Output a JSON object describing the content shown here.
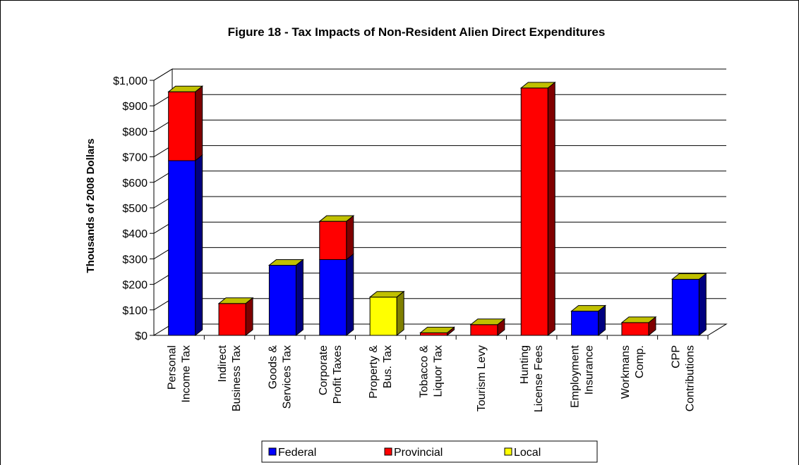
{
  "chart_data": {
    "type": "bar",
    "stacked": true,
    "three_d": true,
    "title": "Figure 18 - Tax Impacts of Non-Resident Alien Direct Expenditures",
    "xlabel": "",
    "ylabel": "Thousands of 2008 Dollars",
    "ylim": [
      0,
      1000
    ],
    "y_ticks": [
      "$0",
      "$100",
      "$200",
      "$300",
      "$400",
      "$500",
      "$600",
      "$700",
      "$800",
      "$900",
      "$1,000"
    ],
    "grid": true,
    "legend_position": "bottom",
    "categories": [
      [
        "Personal",
        "Income Tax"
      ],
      [
        "Indirect",
        "Business Tax"
      ],
      [
        "Goods &",
        "Services Tax"
      ],
      [
        "Corporate",
        "Profit Taxes"
      ],
      [
        "Property &",
        "Bus. Tax"
      ],
      [
        "Tobacco &",
        "Liquor Tax"
      ],
      [
        "Tourism Levy"
      ],
      [
        "Hunting",
        "License Fees"
      ],
      [
        "Employment",
        "Insurance"
      ],
      [
        "Workmans",
        "Comp."
      ],
      [
        "CPP",
        "Contributions"
      ]
    ],
    "series": [
      {
        "name": "Federal",
        "color": "#0000ff",
        "side_color": "#000080",
        "values": [
          685,
          0,
          275,
          297,
          0,
          0,
          0,
          0,
          95,
          0,
          220
        ]
      },
      {
        "name": "Provincial",
        "color": "#ff0000",
        "side_color": "#800000",
        "values": [
          270,
          125,
          0,
          150,
          0,
          10,
          42,
          970,
          0,
          50,
          0
        ]
      },
      {
        "name": "Local",
        "color": "#ffff00",
        "side_color": "#808000",
        "values": [
          0,
          0,
          0,
          0,
          150,
          0,
          0,
          0,
          0,
          0,
          0
        ]
      }
    ],
    "top_color": "#c0c000"
  }
}
